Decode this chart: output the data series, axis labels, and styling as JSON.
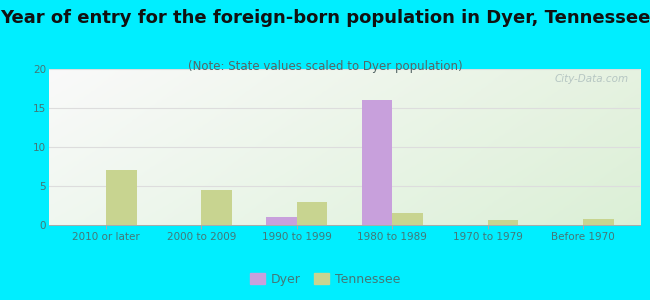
{
  "title": "Year of entry for the foreign-born population in Dyer, Tennessee",
  "subtitle": "(Note: State values scaled to Dyer population)",
  "categories": [
    "2010 or later",
    "2000 to 2009",
    "1990 to 1999",
    "1980 to 1989",
    "1970 to 1979",
    "Before 1970"
  ],
  "dyer_values": [
    0,
    0,
    1,
    16,
    0,
    0
  ],
  "tennessee_values": [
    7,
    4.5,
    3,
    1.5,
    0.7,
    0.8
  ],
  "dyer_color": "#c8a0dc",
  "tennessee_color": "#c8d490",
  "background_color": "#00eeff",
  "ylim": [
    0,
    20
  ],
  "yticks": [
    0,
    5,
    10,
    15,
    20
  ],
  "bar_width": 0.32,
  "title_fontsize": 13,
  "subtitle_fontsize": 8.5,
  "tick_fontsize": 7.5,
  "legend_fontsize": 9,
  "watermark": "City-Data.com",
  "title_color": "#111111",
  "subtitle_color": "#556666",
  "tick_color": "#447777",
  "grid_color": "#dddddd"
}
